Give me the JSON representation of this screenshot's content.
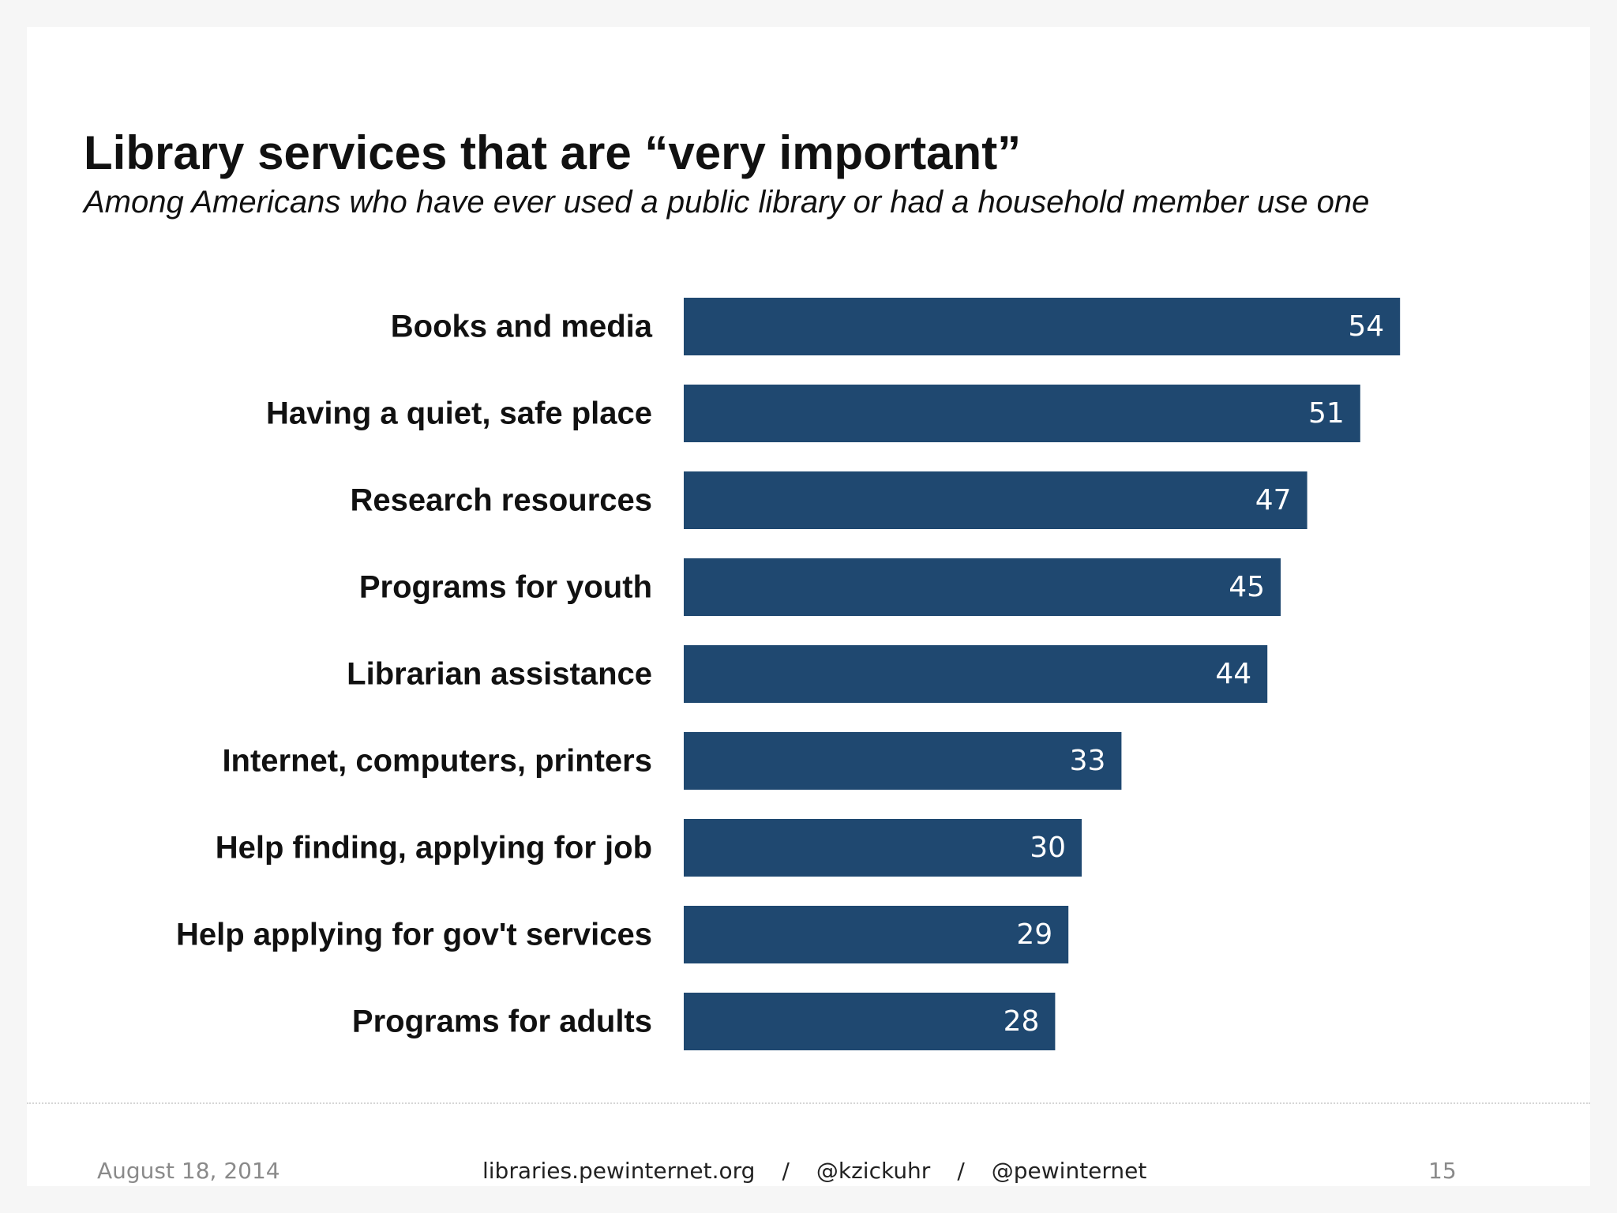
{
  "colors": {
    "bar": "#1f4870",
    "value_text": "#ffffff",
    "label_text": "#111111"
  },
  "chart_data": {
    "type": "bar",
    "orientation": "horizontal",
    "title": "Library services that are “very important”",
    "subtitle": "Among Americans who have ever used a public library or had a household member use one",
    "categories": [
      "Books and media",
      "Having a quiet, safe place",
      "Research resources",
      "Programs for youth",
      "Librarian assistance",
      "Internet, computers, printers",
      "Help finding, applying for job",
      "Help applying for gov't services",
      "Programs for adults"
    ],
    "values": [
      54,
      51,
      47,
      45,
      44,
      33,
      30,
      29,
      28
    ],
    "grid": false,
    "axes_visible": false
  },
  "footer": {
    "date": "August 18, 2014",
    "site": "libraries.pewinternet.org",
    "separator": "/",
    "handle_author": "@kzickuhr",
    "handle_org": "@pewinternet",
    "page": "15"
  }
}
